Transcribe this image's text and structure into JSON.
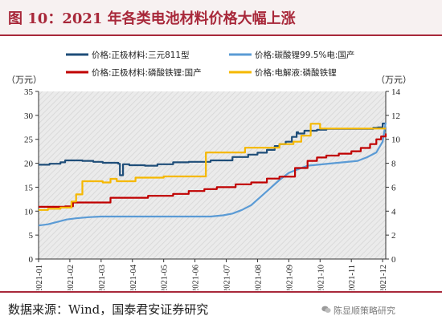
{
  "title": "图 10：2021 年各类电池材料价格大幅上涨",
  "source": "数据来源：Wind，国泰君安证券研究",
  "watermark": "陈显顺策略研究",
  "chart_data": {
    "type": "line",
    "y_left_label": "（万元）",
    "y_right_label": "（万元）",
    "y_left_range": [
      0,
      35
    ],
    "y_left_ticks": [
      "0",
      "5",
      "10",
      "15",
      "20",
      "25",
      "30",
      "35"
    ],
    "y_right_range": [
      0,
      14
    ],
    "y_right_ticks": [
      "0",
      "2",
      "4",
      "6",
      "8",
      "10",
      "12",
      "14"
    ],
    "x_ticks": [
      "2021-01",
      "2021-02",
      "2021-03",
      "2021-04",
      "2021-05",
      "2021-06",
      "2021-07",
      "2021-08",
      "2021-09",
      "2021-10",
      "2021-11",
      "2021-12"
    ],
    "x_range": [
      0,
      11.1
    ],
    "legend_position": "top",
    "series": [
      {
        "name": "价格:正极材料:三元811型",
        "axis": "left",
        "color": "#1f4e79",
        "step": true,
        "x": [
          0,
          0.35,
          0.7,
          0.85,
          1.4,
          1.75,
          2.05,
          2.55,
          2.6,
          2.7,
          2.9,
          3.4,
          3.8,
          4.3,
          4.8,
          5.5,
          6.2,
          6.7,
          7.0,
          7.3,
          7.55,
          7.7,
          7.9,
          8.1,
          8.25,
          8.3,
          8.5,
          8.9,
          9.2,
          9.8,
          10.2,
          10.4,
          10.7,
          10.85,
          11.0,
          11.1
        ],
        "y": [
          19.7,
          19.9,
          20.2,
          20.6,
          20.5,
          20.3,
          20.1,
          19.9,
          17.5,
          19.8,
          19.6,
          19.5,
          19.8,
          20.2,
          20.3,
          20.6,
          21.3,
          21.8,
          22.2,
          22.8,
          23.6,
          24.0,
          24.5,
          25.5,
          26.5,
          26.2,
          26.8,
          27.0,
          27.2,
          27.2,
          27.2,
          27.2,
          27.4,
          27.5,
          28.3,
          28.3
        ]
      },
      {
        "name": "价格:碳酸锂99.5%电:国产",
        "axis": "right",
        "color": "#5b9bd5",
        "step": false,
        "x": [
          0,
          0.3,
          0.6,
          0.9,
          1.2,
          1.6,
          2.0,
          2.5,
          3.0,
          3.5,
          4.0,
          4.5,
          5.0,
          5.5,
          5.9,
          6.2,
          6.5,
          6.8,
          7.1,
          7.4,
          7.7,
          8.0,
          8.3,
          8.6,
          9.0,
          9.4,
          9.8,
          10.2,
          10.5,
          10.8,
          11.0,
          11.1
        ],
        "y": [
          2.8,
          2.9,
          3.1,
          3.3,
          3.4,
          3.5,
          3.55,
          3.55,
          3.55,
          3.55,
          3.55,
          3.55,
          3.55,
          3.55,
          3.65,
          3.8,
          4.1,
          4.5,
          5.2,
          5.9,
          6.6,
          7.2,
          7.5,
          7.8,
          7.9,
          8.0,
          8.1,
          8.2,
          8.5,
          8.9,
          9.8,
          11.4
        ]
      },
      {
        "name": "价格:正极材料:磷酸铁锂:国产",
        "axis": "left",
        "color": "#c00000",
        "step": true,
        "x": [
          0,
          0.85,
          1.1,
          1.6,
          2.3,
          2.8,
          3.5,
          4.3,
          4.8,
          5.3,
          5.7,
          6.3,
          6.8,
          7.3,
          7.7,
          8.2,
          8.6,
          8.9,
          9.2,
          9.6,
          10.0,
          10.3,
          10.6,
          10.8,
          10.95,
          11.1
        ],
        "y": [
          10.9,
          11.0,
          11.8,
          11.8,
          12.8,
          12.8,
          13.2,
          13.6,
          14.2,
          14.6,
          15.0,
          15.6,
          16.0,
          16.8,
          17.2,
          19.0,
          20.5,
          21.2,
          21.6,
          22.0,
          22.5,
          23.2,
          24.0,
          25.0,
          25.6,
          26.2
        ]
      },
      {
        "name": "价格:电解液:磷酸铁锂",
        "axis": "right",
        "color": "#f5b800",
        "step": true,
        "x": [
          0,
          0.3,
          0.7,
          1.05,
          1.2,
          1.4,
          2.05,
          2.3,
          2.5,
          3.1,
          3.5,
          4.0,
          4.6,
          5.05,
          5.35,
          6.6,
          7.7,
          8.15,
          8.4,
          8.7,
          9.0,
          9.7,
          10.5,
          11.1
        ],
        "y": [
          4.1,
          4.2,
          4.3,
          4.8,
          5.4,
          6.5,
          6.4,
          6.7,
          6.5,
          6.8,
          6.8,
          6.9,
          6.9,
          6.9,
          8.9,
          9.3,
          9.6,
          9.8,
          10.3,
          11.3,
          10.9,
          10.9,
          10.9,
          10.9
        ]
      }
    ]
  }
}
